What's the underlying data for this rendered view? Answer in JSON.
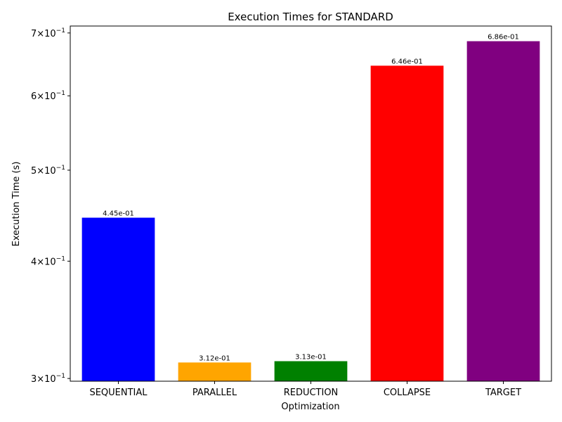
{
  "chart_data": {
    "type": "bar",
    "title": "Execution Times for STANDARD",
    "xlabel": "Optimization",
    "ylabel": "Execution Time (s)",
    "yscale": "log",
    "ylim": [
      0.298,
      0.712
    ],
    "grid": false,
    "legend": "none",
    "categories": [
      "SEQUENTIAL",
      "PARALLEL",
      "REDUCTION",
      "COLLAPSE",
      "TARGET"
    ],
    "values": [
      0.445,
      0.312,
      0.313,
      0.646,
      0.686
    ],
    "value_labels": [
      "4.45e-01",
      "3.12e-01",
      "3.13e-01",
      "6.46e-01",
      "6.86e-01"
    ],
    "colors": [
      "#0000ff",
      "#ffa500",
      "#008000",
      "#ff0000",
      "#800080"
    ],
    "yticks": [
      {
        "value": 0.3,
        "mantissa": "3",
        "exponent": "−1"
      },
      {
        "value": 0.4,
        "mantissa": "4",
        "exponent": "−1"
      },
      {
        "value": 0.5,
        "mantissa": "5",
        "exponent": "−1"
      },
      {
        "value": 0.6,
        "mantissa": "6",
        "exponent": "−1"
      },
      {
        "value": 0.7,
        "mantissa": "7",
        "exponent": "−1"
      }
    ]
  }
}
